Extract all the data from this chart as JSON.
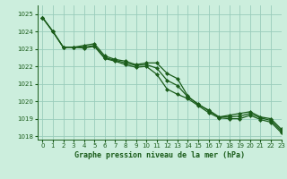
{
  "title": "Graphe pression niveau de la mer (hPa)",
  "background_color": "#cceedd",
  "grid_color": "#99ccbb",
  "line_color": "#1a5c1a",
  "marker_color": "#1a5c1a",
  "xlim": [
    -0.5,
    23
  ],
  "ylim": [
    1017.8,
    1025.5
  ],
  "xticks": [
    0,
    1,
    2,
    3,
    4,
    5,
    6,
    7,
    8,
    9,
    10,
    11,
    12,
    13,
    14,
    15,
    16,
    17,
    18,
    19,
    20,
    21,
    22,
    23
  ],
  "yticks": [
    1018,
    1019,
    1020,
    1021,
    1022,
    1023,
    1024,
    1025
  ],
  "line1": [
    1024.8,
    1024.0,
    1023.1,
    1023.1,
    1023.2,
    1023.3,
    1022.6,
    1022.4,
    1022.3,
    1022.1,
    1022.2,
    1022.2,
    1021.6,
    1021.3,
    1020.3,
    1019.8,
    1019.5,
    1019.1,
    1019.2,
    1019.3,
    1019.4,
    1019.1,
    1019.0,
    1018.4
  ],
  "line2": [
    1024.8,
    1024.0,
    1023.1,
    1023.1,
    1023.1,
    1023.2,
    1022.5,
    1022.35,
    1022.2,
    1022.05,
    1022.1,
    1021.9,
    1021.2,
    1020.9,
    1020.25,
    1019.85,
    1019.45,
    1019.1,
    1019.1,
    1019.15,
    1019.3,
    1019.05,
    1018.9,
    1018.3
  ],
  "line3": [
    1024.8,
    1024.0,
    1023.1,
    1023.1,
    1023.05,
    1023.15,
    1022.45,
    1022.3,
    1022.1,
    1021.95,
    1022.0,
    1021.55,
    1020.7,
    1020.4,
    1020.15,
    1019.75,
    1019.35,
    1019.05,
    1019.0,
    1019.0,
    1019.2,
    1018.95,
    1018.8,
    1018.2
  ]
}
